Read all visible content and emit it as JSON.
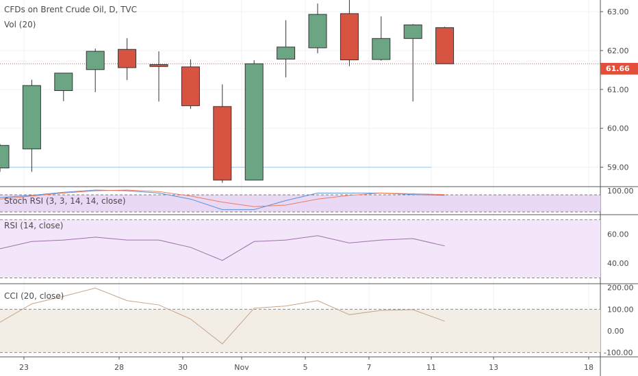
{
  "chart_data": [
    {
      "type": "candlestick",
      "title": "CFDs on Brent Crude Oil, D, TVC",
      "ylim": [
        58.5,
        63.3
      ],
      "y_ticks": [
        "63.00",
        "62.00",
        "61.00",
        "60.00",
        "59.00"
      ],
      "x_ticks": [
        "23",
        "28",
        "30",
        "Nov",
        "5",
        "7",
        "11",
        "13",
        "18"
      ],
      "last_price": "61.66",
      "horizontal_line": 59.0,
      "colors": {
        "up": "#6ba583",
        "down": "#d75442",
        "last_price": "#e24f3b",
        "hline": "#9ec7e8"
      },
      "candles": [
        {
          "open": 58.98,
          "high": 59.6,
          "low": 58.88,
          "close": 59.56
        },
        {
          "open": 59.47,
          "high": 61.25,
          "low": 58.88,
          "close": 61.1
        },
        {
          "open": 60.97,
          "high": 61.39,
          "low": 60.7,
          "close": 61.42
        },
        {
          "open": 61.51,
          "high": 62.05,
          "low": 60.93,
          "close": 61.98
        },
        {
          "open": 62.03,
          "high": 62.32,
          "low": 61.24,
          "close": 61.56
        },
        {
          "open": 61.64,
          "high": 61.98,
          "low": 60.69,
          "close": 61.59
        },
        {
          "open": 61.58,
          "high": 61.77,
          "low": 60.5,
          "close": 60.58
        },
        {
          "open": 60.56,
          "high": 61.13,
          "low": 58.6,
          "close": 58.67
        },
        {
          "open": 58.67,
          "high": 61.75,
          "low": 58.67,
          "close": 61.66
        },
        {
          "open": 61.78,
          "high": 62.78,
          "low": 61.31,
          "close": 62.09
        },
        {
          "open": 62.07,
          "high": 63.21,
          "low": 61.93,
          "close": 62.93
        },
        {
          "open": 62.95,
          "high": 63.3,
          "low": 61.6,
          "close": 61.76
        },
        {
          "open": 61.77,
          "high": 62.88,
          "low": 61.74,
          "close": 62.31
        },
        {
          "open": 62.31,
          "high": 62.68,
          "low": 60.69,
          "close": 62.66
        },
        {
          "open": 62.59,
          "high": 62.61,
          "low": 61.66,
          "close": 61.66
        }
      ]
    },
    {
      "type": "line",
      "title": "Stoch RSI (3, 3, 14, 14, close)",
      "y_ticks": [
        "100.00"
      ],
      "series": [
        {
          "color": "#5b8fd6",
          "values": [
            90,
            93,
            97,
            100,
            99,
            96,
            88,
            74,
            74,
            86,
            96,
            96,
            96,
            94,
            93
          ]
        },
        {
          "color": "#f07a5a",
          "values": [
            88,
            92,
            96,
            99,
            100,
            98,
            92,
            84,
            78,
            80,
            88,
            93,
            96,
            95,
            94
          ]
        }
      ]
    },
    {
      "type": "line",
      "title": "RSI (14, close)",
      "y_ticks": [
        "60.00",
        "40.00"
      ],
      "ylim": [
        26,
        73
      ],
      "band": [
        30,
        70
      ],
      "series": [
        {
          "color": "#9c6fa8",
          "values": [
            50,
            55,
            56,
            58,
            56,
            56,
            51,
            42,
            55,
            56,
            59,
            54,
            56,
            57,
            52
          ]
        }
      ]
    },
    {
      "type": "line",
      "title": "CCI (20, close)",
      "y_ticks": [
        "200.00",
        "100.00",
        "0.00",
        "-100.00"
      ],
      "ylim": [
        -120,
        215
      ],
      "band": [
        -100,
        100
      ],
      "series": [
        {
          "color": "#c7a487",
          "values": [
            40,
            125,
            160,
            198,
            140,
            120,
            55,
            -60,
            105,
            115,
            140,
            75,
            95,
            98,
            45
          ]
        }
      ]
    }
  ]
}
